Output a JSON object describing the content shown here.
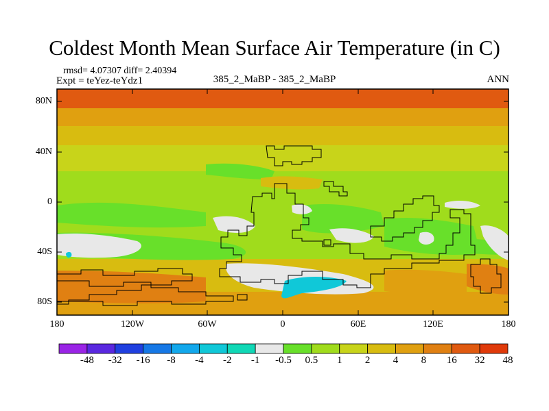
{
  "chart_data": {
    "type": "heatmap",
    "title": "Coldest Month Mean Surface Air Temperature (in C)",
    "stats": "rmsd= 4.07307 diff= 2.40394",
    "experiment": "Expt = teYez-teYdz1",
    "center_label": "385_2_MaBP - 385_2_MaBP",
    "season": "ANN",
    "x_axis": {
      "ticks": [
        "180",
        "120W",
        "60W",
        "0",
        "60E",
        "120E",
        "180"
      ],
      "range": [
        -180,
        180
      ]
    },
    "y_axis": {
      "ticks": [
        "80N",
        "40N",
        "0",
        "40S",
        "80S"
      ],
      "range": [
        -90,
        90
      ]
    },
    "colorbar": {
      "labels": [
        "-48",
        "-32",
        "-16",
        "-8",
        "-4",
        "-2",
        "-1",
        "-0.5",
        "0.5",
        "1",
        "2",
        "4",
        "8",
        "16",
        "32",
        "48"
      ],
      "colors": [
        "#9a24e6",
        "#5a28e0",
        "#2040e0",
        "#1678e6",
        "#12a8ec",
        "#10c8d8",
        "#10d8b6",
        "#e8e8e8",
        "#68e02a",
        "#a0dc1c",
        "#c8d41a",
        "#d8bc10",
        "#e0a010",
        "#e08012",
        "#e05a10",
        "#e03a0a"
      ]
    },
    "field_bands": [
      {
        "lat_range": [
          75,
          90
        ],
        "level": "16 to 32"
      },
      {
        "lat_range": [
          60,
          75
        ],
        "level": "8 to 16"
      },
      {
        "lat_range": [
          45,
          60
        ],
        "level": "4 to 8"
      },
      {
        "lat_range": [
          25,
          45
        ],
        "level": "2 to 4"
      },
      {
        "lat_range": [
          -5,
          25
        ],
        "level": "1 to 2"
      },
      {
        "lat_range": [
          -40,
          -5
        ],
        "level": "0.5 to 1"
      },
      {
        "lat_range": [
          -75,
          -40
        ],
        "level": "4 to 8"
      },
      {
        "lat_range": [
          -90,
          -75
        ],
        "level": "8 to 16"
      }
    ]
  }
}
